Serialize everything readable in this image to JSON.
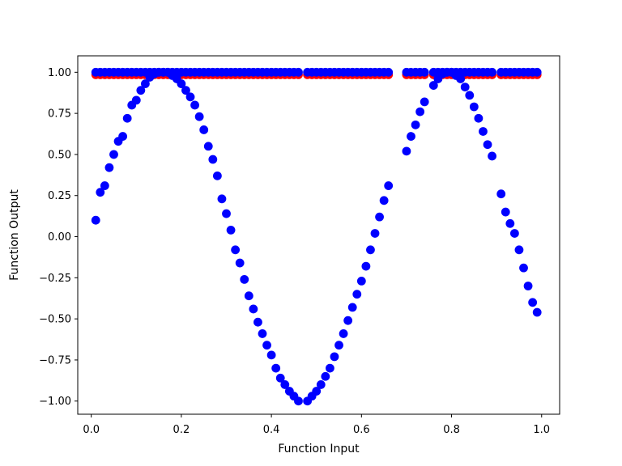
{
  "chart_data": {
    "type": "scatter",
    "title": "",
    "xlabel": "Function Input",
    "ylabel": "Function Output",
    "xlim": [
      -0.03,
      1.04
    ],
    "ylim": [
      -1.08,
      1.1
    ],
    "x_ticks": [
      0.0,
      0.2,
      0.4,
      0.6,
      0.8,
      1.0
    ],
    "x_tick_labels": [
      "0.0",
      "0.2",
      "0.4",
      "0.6",
      "0.8",
      "1.0"
    ],
    "y_ticks": [
      -1.0,
      -0.75,
      -0.5,
      -0.25,
      0.0,
      0.25,
      0.5,
      0.75,
      1.0
    ],
    "y_tick_labels": [
      "−1.00",
      "−0.75",
      "−0.50",
      "−0.25",
      "0.00",
      "0.25",
      "0.50",
      "0.75",
      "1.00"
    ],
    "grid": false,
    "legend": "none",
    "series": [
      {
        "color": "#ff0000",
        "x": [
          0.01,
          0.02,
          0.03,
          0.04,
          0.05,
          0.06,
          0.07,
          0.08,
          0.09,
          0.1,
          0.11,
          0.12,
          0.13,
          0.14,
          0.15,
          0.16,
          0.17,
          0.18,
          0.19,
          0.2,
          0.21,
          0.22,
          0.23,
          0.24,
          0.25,
          0.26,
          0.27,
          0.28,
          0.29,
          0.3,
          0.31,
          0.32,
          0.33,
          0.34,
          0.35,
          0.36,
          0.37,
          0.38,
          0.39,
          0.4,
          0.41,
          0.42,
          0.43,
          0.44,
          0.45,
          0.46,
          0.48,
          0.49,
          0.5,
          0.51,
          0.52,
          0.53,
          0.54,
          0.55,
          0.56,
          0.57,
          0.58,
          0.59,
          0.6,
          0.61,
          0.62,
          0.63,
          0.64,
          0.65,
          0.66,
          0.7,
          0.71,
          0.72,
          0.73,
          0.74,
          0.76,
          0.77,
          0.78,
          0.79,
          0.8,
          0.81,
          0.82,
          0.83,
          0.84,
          0.85,
          0.86,
          0.87,
          0.88,
          0.89,
          0.91,
          0.92,
          0.93,
          0.94,
          0.95,
          0.96,
          0.97,
          0.98,
          0.99
        ],
        "y": [
          0.985,
          0.985,
          0.985,
          0.985,
          0.985,
          0.985,
          0.985,
          0.985,
          0.985,
          0.985,
          0.985,
          0.985,
          0.985,
          0.985,
          0.985,
          0.985,
          0.985,
          0.985,
          0.985,
          0.985,
          0.985,
          0.985,
          0.985,
          0.985,
          0.985,
          0.985,
          0.985,
          0.985,
          0.985,
          0.985,
          0.985,
          0.985,
          0.985,
          0.985,
          0.985,
          0.985,
          0.985,
          0.985,
          0.985,
          0.985,
          0.985,
          0.985,
          0.985,
          0.985,
          0.985,
          0.985,
          0.985,
          0.985,
          0.985,
          0.985,
          0.985,
          0.985,
          0.985,
          0.985,
          0.985,
          0.985,
          0.985,
          0.985,
          0.985,
          0.985,
          0.985,
          0.985,
          0.985,
          0.985,
          0.985,
          0.985,
          0.985,
          0.985,
          0.985,
          0.985,
          0.985,
          0.985,
          0.985,
          0.985,
          0.985,
          0.985,
          0.985,
          0.985,
          0.985,
          0.985,
          0.985,
          0.985,
          0.985,
          0.985,
          0.985,
          0.985,
          0.985,
          0.985,
          0.985,
          0.985,
          0.985,
          0.985,
          0.985
        ]
      },
      {
        "color": "#0000ff",
        "x": [
          0.01,
          0.02,
          0.03,
          0.04,
          0.05,
          0.06,
          0.07,
          0.08,
          0.09,
          0.1,
          0.11,
          0.12,
          0.13,
          0.14,
          0.15,
          0.16,
          0.17,
          0.18,
          0.19,
          0.2,
          0.21,
          0.22,
          0.23,
          0.24,
          0.25,
          0.26,
          0.27,
          0.28,
          0.29,
          0.3,
          0.31,
          0.32,
          0.33,
          0.34,
          0.35,
          0.36,
          0.37,
          0.38,
          0.39,
          0.4,
          0.41,
          0.42,
          0.43,
          0.44,
          0.45,
          0.46,
          0.48,
          0.49,
          0.5,
          0.51,
          0.52,
          0.53,
          0.54,
          0.55,
          0.56,
          0.57,
          0.58,
          0.59,
          0.6,
          0.61,
          0.62,
          0.63,
          0.64,
          0.65,
          0.66,
          0.7,
          0.71,
          0.72,
          0.73,
          0.74,
          0.76,
          0.77,
          0.78,
          0.79,
          0.8,
          0.81,
          0.82,
          0.83,
          0.84,
          0.85,
          0.86,
          0.87,
          0.88,
          0.89,
          0.91,
          0.92,
          0.93,
          0.94,
          0.95,
          0.96,
          0.97,
          0.98,
          0.99
        ],
        "y": [
          0.1,
          0.27,
          0.31,
          0.42,
          0.5,
          0.58,
          0.61,
          0.72,
          0.8,
          0.83,
          0.89,
          0.93,
          0.97,
          0.99,
          1.0,
          1.0,
          1.0,
          0.98,
          0.96,
          0.93,
          0.89,
          0.85,
          0.8,
          0.73,
          0.65,
          0.55,
          0.47,
          0.37,
          0.23,
          0.14,
          0.04,
          -0.08,
          -0.16,
          -0.26,
          -0.36,
          -0.44,
          -0.52,
          -0.59,
          -0.66,
          -0.72,
          -0.8,
          -0.86,
          -0.9,
          -0.94,
          -0.97,
          -1.0,
          -1.0,
          -0.97,
          -0.94,
          -0.9,
          -0.85,
          -0.8,
          -0.73,
          -0.66,
          -0.59,
          -0.51,
          -0.43,
          -0.35,
          -0.27,
          -0.18,
          -0.08,
          0.02,
          0.12,
          0.22,
          0.31,
          0.52,
          0.61,
          0.68,
          0.76,
          0.82,
          0.92,
          0.96,
          0.99,
          1.0,
          1.0,
          0.98,
          0.96,
          0.91,
          0.86,
          0.79,
          0.72,
          0.64,
          0.56,
          0.49,
          0.26,
          0.15,
          0.08,
          0.02,
          -0.08,
          -0.19,
          -0.3,
          -0.4,
          -0.46
        ]
      },
      {
        "color": "#0000ff",
        "x": [
          0.01,
          0.02,
          0.03,
          0.04,
          0.05,
          0.06,
          0.07,
          0.08,
          0.09,
          0.1,
          0.11,
          0.12,
          0.13,
          0.14,
          0.15,
          0.16,
          0.17,
          0.18,
          0.19,
          0.2,
          0.21,
          0.22,
          0.23,
          0.24,
          0.25,
          0.26,
          0.27,
          0.28,
          0.29,
          0.3,
          0.31,
          0.32,
          0.33,
          0.34,
          0.35,
          0.36,
          0.37,
          0.38,
          0.39,
          0.4,
          0.41,
          0.42,
          0.43,
          0.44,
          0.45,
          0.46,
          0.48,
          0.49,
          0.5,
          0.51,
          0.52,
          0.53,
          0.54,
          0.55,
          0.56,
          0.57,
          0.58,
          0.59,
          0.6,
          0.61,
          0.62,
          0.63,
          0.64,
          0.65,
          0.66,
          0.7,
          0.71,
          0.72,
          0.73,
          0.74,
          0.76,
          0.77,
          0.78,
          0.79,
          0.8,
          0.81,
          0.82,
          0.83,
          0.84,
          0.85,
          0.86,
          0.87,
          0.88,
          0.89,
          0.91,
          0.92,
          0.93,
          0.94,
          0.95,
          0.96,
          0.97,
          0.98,
          0.99
        ],
        "y": [
          1.0,
          1.0,
          1.0,
          1.0,
          1.0,
          1.0,
          1.0,
          1.0,
          1.0,
          1.0,
          1.0,
          1.0,
          1.0,
          1.0,
          1.0,
          1.0,
          1.0,
          1.0,
          1.0,
          1.0,
          1.0,
          1.0,
          1.0,
          1.0,
          1.0,
          1.0,
          1.0,
          1.0,
          1.0,
          1.0,
          1.0,
          1.0,
          1.0,
          1.0,
          1.0,
          1.0,
          1.0,
          1.0,
          1.0,
          1.0,
          1.0,
          1.0,
          1.0,
          1.0,
          1.0,
          1.0,
          1.0,
          1.0,
          1.0,
          1.0,
          1.0,
          1.0,
          1.0,
          1.0,
          1.0,
          1.0,
          1.0,
          1.0,
          1.0,
          1.0,
          1.0,
          1.0,
          1.0,
          1.0,
          1.0,
          1.0,
          1.0,
          1.0,
          1.0,
          1.0,
          1.0,
          1.0,
          1.0,
          1.0,
          1.0,
          1.0,
          1.0,
          1.0,
          1.0,
          1.0,
          1.0,
          1.0,
          1.0,
          1.0,
          1.0,
          1.0,
          1.0,
          1.0,
          1.0,
          1.0,
          1.0,
          1.0,
          1.0
        ]
      }
    ]
  }
}
